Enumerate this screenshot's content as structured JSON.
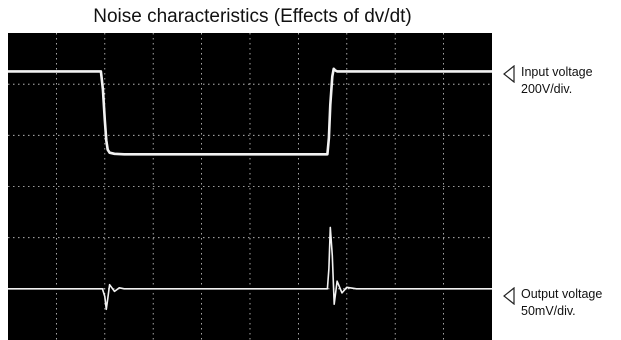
{
  "title": "Noise characteristics (Effects of dv/dt)",
  "chart_data": {
    "type": "line",
    "title": "Noise characteristics (Effects of dv/dt)",
    "grid": true,
    "divisions": {
      "x": 10,
      "y": 6
    },
    "x_range": [
      0,
      10
    ],
    "y_range": [
      0,
      6
    ],
    "background": "#000000",
    "trace_color": "#f2f2f2",
    "grid_color": "#cfcfcf",
    "series": [
      {
        "name": "Input voltage",
        "scale": "200V/div.",
        "marker_level": 5.25,
        "x": [
          0,
          1.92,
          1.96,
          2.0,
          2.03,
          2.06,
          2.1,
          2.2,
          2.4,
          6.6,
          6.63,
          6.66,
          6.7,
          6.73,
          6.76,
          6.8,
          10
        ],
        "y": [
          5.25,
          5.25,
          4.9,
          4.3,
          3.9,
          3.72,
          3.66,
          3.64,
          3.63,
          3.63,
          3.95,
          4.6,
          5.15,
          5.3,
          5.27,
          5.25,
          5.25
        ]
      },
      {
        "name": "Output voltage",
        "scale": "50mV/div.",
        "marker_level": 1.02,
        "x": [
          0,
          1.95,
          2.0,
          2.03,
          2.06,
          2.1,
          2.2,
          2.3,
          2.4,
          6.5,
          6.6,
          6.63,
          6.66,
          6.7,
          6.74,
          6.8,
          6.9,
          7.0,
          7.2,
          10
        ],
        "y": [
          1.0,
          1.0,
          0.85,
          0.6,
          0.8,
          1.08,
          0.95,
          1.02,
          1.0,
          1.0,
          1.0,
          1.4,
          2.2,
          1.65,
          0.7,
          1.15,
          0.92,
          1.03,
          1.0,
          1.0
        ]
      }
    ]
  },
  "labels": {
    "input": {
      "line1": "Input voltage",
      "line2": "200V/div."
    },
    "output": {
      "line1": "Output voltage",
      "line2": "50mV/div."
    }
  }
}
